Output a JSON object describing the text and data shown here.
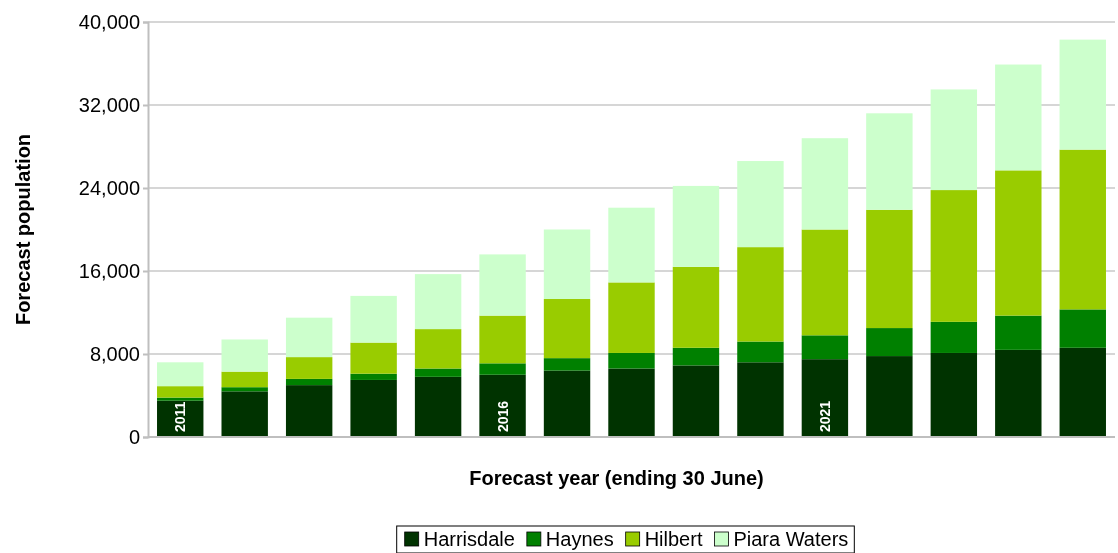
{
  "chart_data": {
    "type": "bar",
    "stacked": true,
    "xlabel": "Forecast year (ending 30 June)",
    "ylabel": "Forecast population",
    "categories": [
      "2011",
      null,
      null,
      null,
      null,
      "2016",
      null,
      null,
      null,
      null,
      "2021",
      null,
      null,
      null,
      null
    ],
    "series": [
      {
        "name": "Harrisdale",
        "color": "#003300",
        "values": [
          3500,
          4400,
          5000,
          5500,
          5800,
          6000,
          6400,
          6600,
          6900,
          7200,
          7500,
          7800,
          8100,
          8400,
          8600
        ]
      },
      {
        "name": "Haynes",
        "color": "#008000",
        "values": [
          300,
          400,
          600,
          600,
          800,
          1100,
          1200,
          1500,
          1700,
          2000,
          2300,
          2700,
          3000,
          3300,
          3700
        ]
      },
      {
        "name": "Hilbert",
        "color": "#99cc00",
        "values": [
          1100,
          1500,
          2100,
          3000,
          3800,
          4600,
          5700,
          6800,
          7800,
          9100,
          10200,
          11400,
          12700,
          14000,
          15400
        ]
      },
      {
        "name": "Piara Waters",
        "color": "#ccffcc",
        "values": [
          2300,
          3100,
          3800,
          4500,
          5300,
          5900,
          6700,
          7200,
          7800,
          8300,
          8800,
          9300,
          9700,
          10200,
          10600
        ]
      }
    ],
    "ylim": [
      0,
      40000
    ],
    "yticks": [
      0,
      {
        "value": 8000,
        "label": "8,000"
      },
      {
        "value": 16000,
        "label": "16,000"
      },
      {
        "value": 24000,
        "label": "24,000"
      },
      {
        "value": 32000,
        "label": "32,000"
      },
      {
        "value": 40000,
        "label": "40,000"
      }
    ],
    "grid": "y",
    "legend": "bottom"
  }
}
